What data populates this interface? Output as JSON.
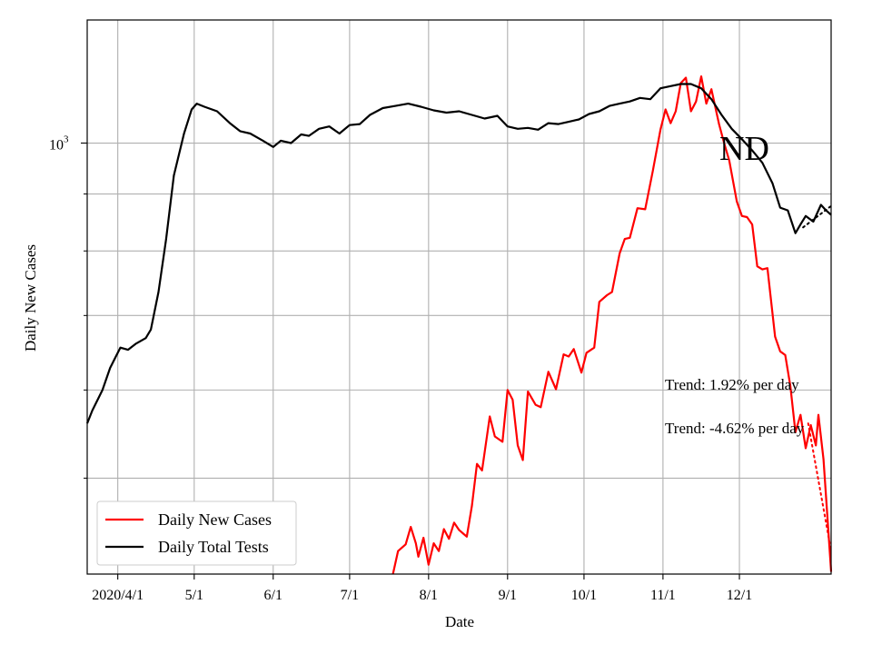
{
  "chart_data": {
    "type": "line",
    "title": "",
    "big_label": "ND",
    "xlabel": "Date",
    "ylabel": "Daily New Cases",
    "y_scale": "log",
    "ylim": [
      410,
      1290
    ],
    "xlim": [
      "2020-03-20",
      "2021-01-06"
    ],
    "grid": true,
    "legend_position": "lower-left",
    "x_tick_labels": [
      {
        "label": "2020/4/1",
        "date": "2020-04-01"
      },
      {
        "label": "5/1",
        "date": "2020-05-01"
      },
      {
        "label": "6/1",
        "date": "2020-06-01"
      },
      {
        "label": "7/1",
        "date": "2020-07-01"
      },
      {
        "label": "8/1",
        "date": "2020-08-01"
      },
      {
        "label": "9/1",
        "date": "2020-09-01"
      },
      {
        "label": "10/1",
        "date": "2020-10-01"
      },
      {
        "label": "11/1",
        "date": "2020-11-01"
      },
      {
        "label": "12/1",
        "date": "2020-12-01"
      }
    ],
    "y_tick_labels": [
      {
        "label": "10",
        "exponent": "3",
        "value": 1000
      }
    ],
    "y_minor_ticks": [
      500,
      600,
      700,
      800,
      900,
      2000
    ],
    "annotations": [
      {
        "text": "Trend: 1.92% per day"
      },
      {
        "text": "Trend: -4.62% per day"
      }
    ],
    "series": [
      {
        "name": "Daily New Cases",
        "color": "#ff0000",
        "points": [
          [
            "2020-07-18",
            410
          ],
          [
            "2020-07-20",
            430
          ],
          [
            "2020-07-23",
            436
          ],
          [
            "2020-07-25",
            452
          ],
          [
            "2020-07-27",
            437
          ],
          [
            "2020-07-28",
            425
          ],
          [
            "2020-07-30",
            442
          ],
          [
            "2020-08-01",
            418
          ],
          [
            "2020-08-03",
            437
          ],
          [
            "2020-08-05",
            430
          ],
          [
            "2020-08-07",
            450
          ],
          [
            "2020-08-09",
            441
          ],
          [
            "2020-08-11",
            456
          ],
          [
            "2020-08-13",
            449
          ],
          [
            "2020-08-16",
            443
          ],
          [
            "2020-08-18",
            472
          ],
          [
            "2020-08-20",
            515
          ],
          [
            "2020-08-22",
            508
          ],
          [
            "2020-08-25",
            568
          ],
          [
            "2020-08-27",
            545
          ],
          [
            "2020-08-30",
            539
          ],
          [
            "2020-09-01",
            600
          ],
          [
            "2020-09-03",
            588
          ],
          [
            "2020-09-05",
            535
          ],
          [
            "2020-09-07",
            519
          ],
          [
            "2020-09-09",
            598
          ],
          [
            "2020-09-12",
            582
          ],
          [
            "2020-09-14",
            579
          ],
          [
            "2020-09-17",
            623
          ],
          [
            "2020-09-20",
            601
          ],
          [
            "2020-09-23",
            646
          ],
          [
            "2020-09-25",
            643
          ],
          [
            "2020-09-27",
            653
          ],
          [
            "2020-09-30",
            622
          ],
          [
            "2020-10-02",
            648
          ],
          [
            "2020-10-05",
            655
          ],
          [
            "2020-10-07",
            720
          ],
          [
            "2020-10-10",
            730
          ],
          [
            "2020-10-12",
            735
          ],
          [
            "2020-10-15",
            796
          ],
          [
            "2020-10-17",
            820
          ],
          [
            "2020-10-19",
            822
          ],
          [
            "2020-10-22",
            874
          ],
          [
            "2020-10-25",
            872
          ],
          [
            "2020-10-28",
            944
          ],
          [
            "2020-10-31",
            1028
          ],
          [
            "2020-11-02",
            1072
          ],
          [
            "2020-11-04",
            1042
          ],
          [
            "2020-11-06",
            1068
          ],
          [
            "2020-11-08",
            1132
          ],
          [
            "2020-11-10",
            1145
          ],
          [
            "2020-11-12",
            1068
          ],
          [
            "2020-11-14",
            1090
          ],
          [
            "2020-11-16",
            1148
          ],
          [
            "2020-11-18",
            1085
          ],
          [
            "2020-11-20",
            1118
          ],
          [
            "2020-11-23",
            1040
          ],
          [
            "2020-11-25",
            1000
          ],
          [
            "2020-11-27",
            965
          ],
          [
            "2020-11-30",
            886
          ],
          [
            "2020-12-02",
            860
          ],
          [
            "2020-12-04",
            858
          ],
          [
            "2020-12-06",
            845
          ],
          [
            "2020-12-08",
            775
          ],
          [
            "2020-12-10",
            770
          ],
          [
            "2020-12-12",
            772
          ],
          [
            "2020-12-15",
            670
          ],
          [
            "2020-12-17",
            650
          ],
          [
            "2020-12-19",
            645
          ],
          [
            "2020-12-21",
            605
          ],
          [
            "2020-12-23",
            550
          ],
          [
            "2020-12-25",
            570
          ],
          [
            "2020-12-27",
            532
          ],
          [
            "2020-12-29",
            558
          ],
          [
            "2020-12-31",
            535
          ],
          [
            "2021-01-01",
            570
          ],
          [
            "2021-01-03",
            520
          ],
          [
            "2021-01-06",
            412
          ]
        ]
      },
      {
        "name": "Daily Total Tests",
        "color": "#000000",
        "points": [
          [
            "2020-03-20",
            560
          ],
          [
            "2020-03-22",
            575
          ],
          [
            "2020-03-26",
            600
          ],
          [
            "2020-03-29",
            628
          ],
          [
            "2020-04-02",
            655
          ],
          [
            "2020-04-05",
            652
          ],
          [
            "2020-04-08",
            660
          ],
          [
            "2020-04-12",
            668
          ],
          [
            "2020-04-14",
            680
          ],
          [
            "2020-04-17",
            735
          ],
          [
            "2020-04-20",
            820
          ],
          [
            "2020-04-23",
            935
          ],
          [
            "2020-04-27",
            1020
          ],
          [
            "2020-04-30",
            1072
          ],
          [
            "2020-05-02",
            1085
          ],
          [
            "2020-05-05",
            1078
          ],
          [
            "2020-05-10",
            1068
          ],
          [
            "2020-05-15",
            1042
          ],
          [
            "2020-05-19",
            1025
          ],
          [
            "2020-05-23",
            1020
          ],
          [
            "2020-05-28",
            1005
          ],
          [
            "2020-06-01",
            992
          ],
          [
            "2020-06-04",
            1005
          ],
          [
            "2020-06-08",
            1000
          ],
          [
            "2020-06-12",
            1018
          ],
          [
            "2020-06-15",
            1015
          ],
          [
            "2020-06-19",
            1030
          ],
          [
            "2020-06-23",
            1035
          ],
          [
            "2020-06-27",
            1020
          ],
          [
            "2020-07-01",
            1038
          ],
          [
            "2020-07-05",
            1040
          ],
          [
            "2020-07-09",
            1060
          ],
          [
            "2020-07-14",
            1075
          ],
          [
            "2020-07-19",
            1080
          ],
          [
            "2020-07-24",
            1085
          ],
          [
            "2020-07-29",
            1078
          ],
          [
            "2020-08-03",
            1070
          ],
          [
            "2020-08-08",
            1065
          ],
          [
            "2020-08-13",
            1068
          ],
          [
            "2020-08-18",
            1060
          ],
          [
            "2020-08-23",
            1052
          ],
          [
            "2020-08-28",
            1058
          ],
          [
            "2020-09-01",
            1035
          ],
          [
            "2020-09-05",
            1030
          ],
          [
            "2020-09-09",
            1032
          ],
          [
            "2020-09-13",
            1028
          ],
          [
            "2020-09-17",
            1042
          ],
          [
            "2020-09-21",
            1040
          ],
          [
            "2020-09-25",
            1045
          ],
          [
            "2020-09-29",
            1050
          ],
          [
            "2020-10-03",
            1062
          ],
          [
            "2020-10-07",
            1068
          ],
          [
            "2020-10-11",
            1080
          ],
          [
            "2020-10-15",
            1085
          ],
          [
            "2020-10-19",
            1090
          ],
          [
            "2020-10-23",
            1098
          ],
          [
            "2020-10-27",
            1095
          ],
          [
            "2020-10-31",
            1120
          ],
          [
            "2020-11-04",
            1125
          ],
          [
            "2020-11-08",
            1130
          ],
          [
            "2020-11-12",
            1130
          ],
          [
            "2020-11-16",
            1120
          ],
          [
            "2020-11-20",
            1095
          ],
          [
            "2020-11-24",
            1060
          ],
          [
            "2020-11-28",
            1030
          ],
          [
            "2020-12-02",
            1008
          ],
          [
            "2020-12-06",
            985
          ],
          [
            "2020-12-10",
            960
          ],
          [
            "2020-12-14",
            920
          ],
          [
            "2020-12-17",
            875
          ],
          [
            "2020-12-20",
            870
          ],
          [
            "2020-12-23",
            830
          ],
          [
            "2020-12-25",
            845
          ],
          [
            "2020-12-27",
            860
          ],
          [
            "2020-12-30",
            850
          ],
          [
            "2021-01-02",
            880
          ],
          [
            "2021-01-04",
            870
          ],
          [
            "2021-01-06",
            862
          ]
        ]
      }
    ],
    "trend_lines": [
      {
        "color": "#000000",
        "style": "dotted",
        "start": [
          "2020-12-26",
          840
        ],
        "end": [
          "2021-01-06",
          878
        ]
      },
      {
        "color": "#ff0000",
        "style": "dotted",
        "start": [
          "2020-12-28",
          560
        ],
        "end": [
          "2021-01-06",
          430
        ]
      }
    ]
  }
}
